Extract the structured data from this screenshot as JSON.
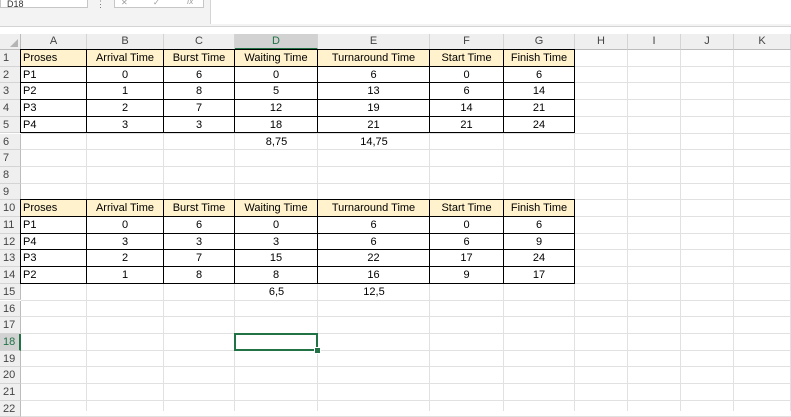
{
  "formula_bar": {
    "name_box": "D18",
    "dots": "⋮",
    "fx_cancel": "✕",
    "fx_enter": "✓",
    "fx_label": "fx",
    "formula": ""
  },
  "columns": [
    "A",
    "B",
    "C",
    "D",
    "E",
    "F",
    "G",
    "H",
    "I",
    "J",
    "K"
  ],
  "rows": [
    "1",
    "2",
    "3",
    "4",
    "5",
    "6",
    "7",
    "8",
    "9",
    "10",
    "11",
    "12",
    "13",
    "14",
    "15",
    "16",
    "17",
    "18",
    "19",
    "20",
    "21",
    "22"
  ],
  "selected_cell": "D18",
  "table1": {
    "headers": [
      "Proses",
      "Arrival Time",
      "Burst Time",
      "Waiting Time",
      "Turnaround Time",
      "Start Time",
      "Finish Time"
    ],
    "rows": [
      [
        "P1",
        "0",
        "6",
        "0",
        "6",
        "0",
        "6"
      ],
      [
        "P2",
        "1",
        "8",
        "5",
        "13",
        "6",
        "14"
      ],
      [
        "P3",
        "2",
        "7",
        "12",
        "19",
        "14",
        "21"
      ],
      [
        "P4",
        "3",
        "3",
        "18",
        "21",
        "21",
        "24"
      ]
    ],
    "avg_waiting": "8,75",
    "avg_turnaround": "14,75"
  },
  "table2": {
    "headers": [
      "Proses",
      "Arrival Time",
      "Burst Time",
      "Waiting Time",
      "Turnaround Time",
      "Start Time",
      "Finish Time"
    ],
    "rows": [
      [
        "P1",
        "0",
        "6",
        "0",
        "6",
        "0",
        "6"
      ],
      [
        "P4",
        "3",
        "3",
        "3",
        "6",
        "6",
        "9"
      ],
      [
        "P3",
        "2",
        "7",
        "15",
        "22",
        "17",
        "24"
      ],
      [
        "P2",
        "1",
        "8",
        "8",
        "16",
        "9",
        "17"
      ]
    ],
    "avg_waiting": "6,5",
    "avg_turnaround": "12,5"
  },
  "colors": {
    "header_fill": "#fff2cc",
    "selection": "#217346",
    "gridline": "#e1e1e1"
  }
}
